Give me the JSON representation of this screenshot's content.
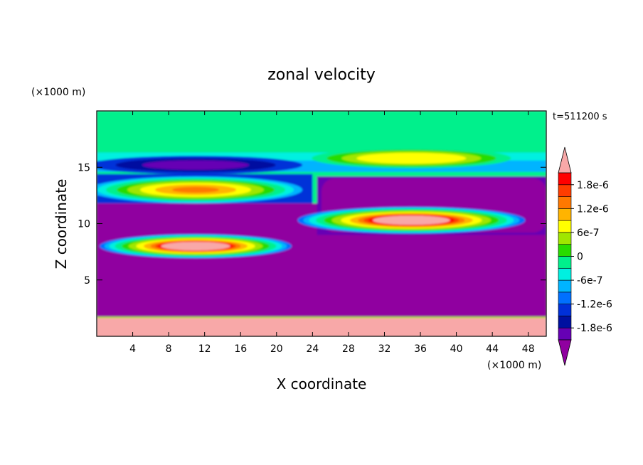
{
  "chart_data": {
    "type": "contour",
    "title": "zonal velocity",
    "timestamp": "t=511200 s",
    "xlabel": "X coordinate",
    "ylabel": "Z coordinate",
    "x_unit": "(×1000 m)",
    "y_unit": "(×1000 m)",
    "xlim": [
      0,
      50
    ],
    "ylim": [
      0,
      20
    ],
    "x_ticks": [
      "4",
      "8",
      "12",
      "16",
      "20",
      "24",
      "28",
      "32",
      "36",
      "40",
      "44",
      "48"
    ],
    "x_tick_values": [
      4,
      8,
      12,
      16,
      20,
      24,
      28,
      32,
      36,
      40,
      44,
      48
    ],
    "y_ticks": [
      "5",
      "10",
      "15"
    ],
    "y_tick_values": [
      5,
      10,
      15
    ],
    "colorbar": {
      "min": -2.1e-06,
      "max": 2.1e-06,
      "step": 3e-07,
      "labels": [
        "1.8e-6",
        "1.2e-6",
        "6e-7",
        "0",
        "-6e-7",
        "-1.2e-6",
        "-1.8e-6"
      ],
      "label_values": [
        1.8e-06,
        1.2e-06,
        6e-07,
        0,
        -6e-07,
        -1.2e-06,
        -1.8e-06
      ],
      "colors": [
        "#9000a0",
        "#6600b4",
        "#0010a0",
        "#0030d8",
        "#0070ff",
        "#00b4ff",
        "#00f0e0",
        "#00f08c",
        "#28dc00",
        "#a0e600",
        "#ffff00",
        "#ffb400",
        "#ff7800",
        "#ff3c00",
        "#ff0000",
        "#f8a8a8"
      ],
      "extend": "both"
    },
    "features": [
      {
        "kind": "band",
        "z": [
          0,
          1.6
        ],
        "value": "above 2.1e-6"
      },
      {
        "kind": "band",
        "z": [
          1.6,
          7
        ],
        "value": "below -2.1e-6"
      },
      {
        "kind": "jet",
        "x_center": 11,
        "z_center": 8,
        "peak": "above 2.1e-6"
      },
      {
        "kind": "jet",
        "x_center": 35,
        "z_center": 10.3,
        "peak": "above 2.1e-6"
      },
      {
        "kind": "jet",
        "x_center": 11,
        "z_center": 13,
        "peak": "1.2e-6"
      },
      {
        "kind": "jet",
        "x_center": 35,
        "z_center": 15.8,
        "peak": "6e-7"
      },
      {
        "kind": "jet",
        "x_center": 11,
        "z_center": 15.2,
        "peak": "-1.8e-6"
      },
      {
        "kind": "band",
        "z": [
          16.5,
          20
        ],
        "value": "0"
      }
    ]
  }
}
